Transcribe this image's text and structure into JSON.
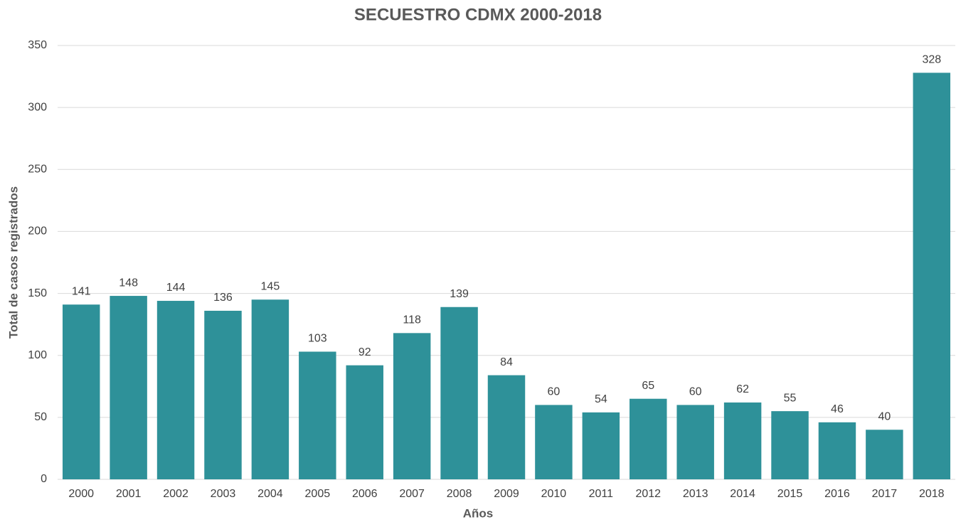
{
  "chart_data": {
    "type": "bar",
    "title": "SECUESTRO CDMX 2000-2018",
    "x_label": "Años",
    "y_label": "Total de casos registrados",
    "categories": [
      "2000",
      "2001",
      "2002",
      "2003",
      "2004",
      "2005",
      "2006",
      "2007",
      "2008",
      "2009",
      "2010",
      "2011",
      "2012",
      "2013",
      "2014",
      "2015",
      "2016",
      "2017",
      "2018"
    ],
    "values": [
      141,
      148,
      144,
      136,
      145,
      103,
      92,
      118,
      139,
      84,
      60,
      54,
      65,
      60,
      62,
      55,
      46,
      40,
      328
    ],
    "color": "#2e9199",
    "ylim": [
      0,
      350
    ],
    "yticks": [
      0,
      50,
      100,
      150,
      200,
      250,
      300,
      350
    ],
    "grid": true
  }
}
